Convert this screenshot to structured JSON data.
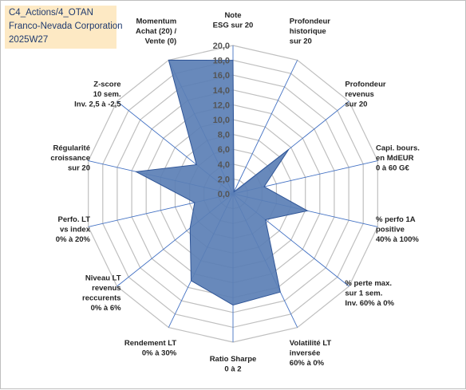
{
  "title": {
    "line1": "C4_Actions/4_OTAN",
    "line2": "Franco-Nevada Corporation",
    "line3": "2025W27"
  },
  "colors": {
    "fill": "#5b7fb5",
    "stroke": "#2f5597",
    "grid": "#bfbfbf",
    "spoke": "#4472c4",
    "title_bg": "#fde9c4"
  },
  "chart_data": {
    "type": "radar",
    "title": "",
    "rmin": 0,
    "rmax": 20,
    "tick_step": 2,
    "tick_labels": [
      "0,0",
      "2,0",
      "4,0",
      "6,0",
      "8,0",
      "10,0",
      "12,0",
      "14,0",
      "16,0",
      "18,0",
      "20,0"
    ],
    "axes": [
      [
        "Note",
        "ESG sur 20"
      ],
      [
        "Profondeur",
        "historique",
        "sur 20"
      ],
      [
        "Profondeur",
        "revenus",
        "sur 20"
      ],
      [
        "Capi. bours.",
        "en MdEUR",
        "0 à 60 G€"
      ],
      [
        "% perfo 1A",
        "positive",
        "40% à 100%"
      ],
      [
        "% perte max.",
        "sur 1 sem.",
        "Inv. 60% à 0%"
      ],
      [
        "Volatilité LT",
        "inversée",
        "60% à 0%"
      ],
      [
        "Ratio Sharpe",
        "0 à 2"
      ],
      [
        "Rendement LT",
        "0% à 30%"
      ],
      [
        "Niveau LT",
        "revenus",
        "reccurents",
        "0% à 6%"
      ],
      [
        "Perfo. LT",
        "vs index",
        "0% à 20%"
      ],
      [
        "Régularité",
        "croissance",
        "sur 20"
      ],
      [
        "Z-score",
        "10 sem.",
        "Inv. 2,5 à -2,5"
      ],
      [
        "Momentum",
        "Achat (20) /",
        "Vente (0)"
      ]
    ],
    "series": [
      {
        "values": [
          18.0,
          0.3,
          9.6,
          4.3,
          10.3,
          5.6,
          14.7,
          15.0,
          13.0,
          7.4,
          5.3,
          13.4,
          6.3,
          20.0
        ]
      }
    ]
  }
}
